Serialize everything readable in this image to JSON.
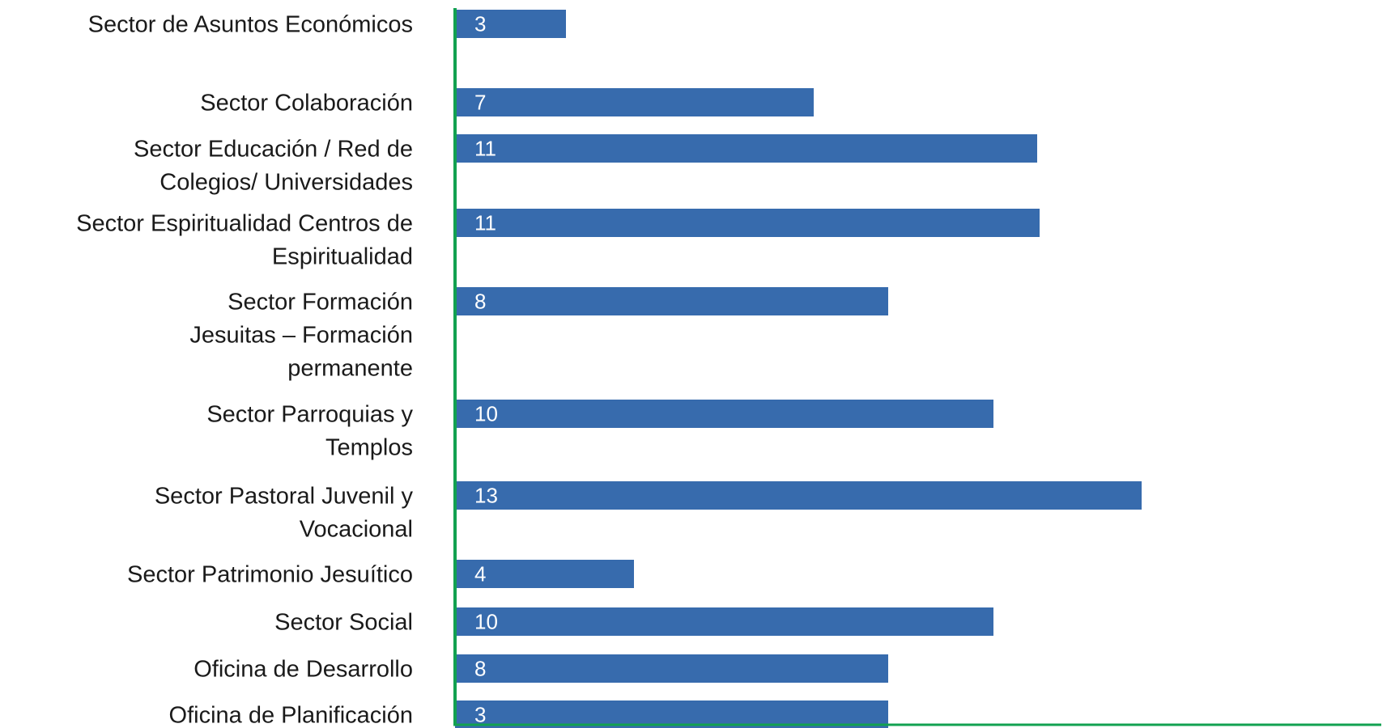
{
  "chart_data": {
    "type": "bar",
    "orientation": "horizontal",
    "categories": [
      [
        "Sector de Asuntos Económicos"
      ],
      [
        "Sector Colaboración"
      ],
      [
        "Sector Educación / Red de",
        "Colegios/ Universidades"
      ],
      [
        "Sector Espiritualidad Centros de",
        "Espiritualidad"
      ],
      [
        "Sector Formación",
        "Jesuitas – Formación",
        "permanente"
      ],
      [
        "Sector Parroquias y",
        "Templos"
      ],
      [
        "Sector Pastoral Juvenil y",
        "Vocacional"
      ],
      [
        "Sector Patrimonio Jesuítico"
      ],
      [
        "Sector Social"
      ],
      [
        "Oficina de Desarrollo"
      ],
      [
        "Oficina de Planificación"
      ]
    ],
    "values": [
      3,
      7,
      11,
      11,
      8,
      10,
      13,
      4,
      10,
      8,
      3
    ],
    "data_labels": [
      "3",
      "7",
      "11",
      "11",
      "8",
      "10",
      "13",
      "4",
      "10",
      "8",
      "3"
    ],
    "bar_color": "#376bad",
    "axis_color": "#12a150",
    "label_color": "#1a1a1a",
    "data_label_color": "#ffffff",
    "xlim": [
      0,
      19
    ],
    "grid": false,
    "legend": "none"
  }
}
